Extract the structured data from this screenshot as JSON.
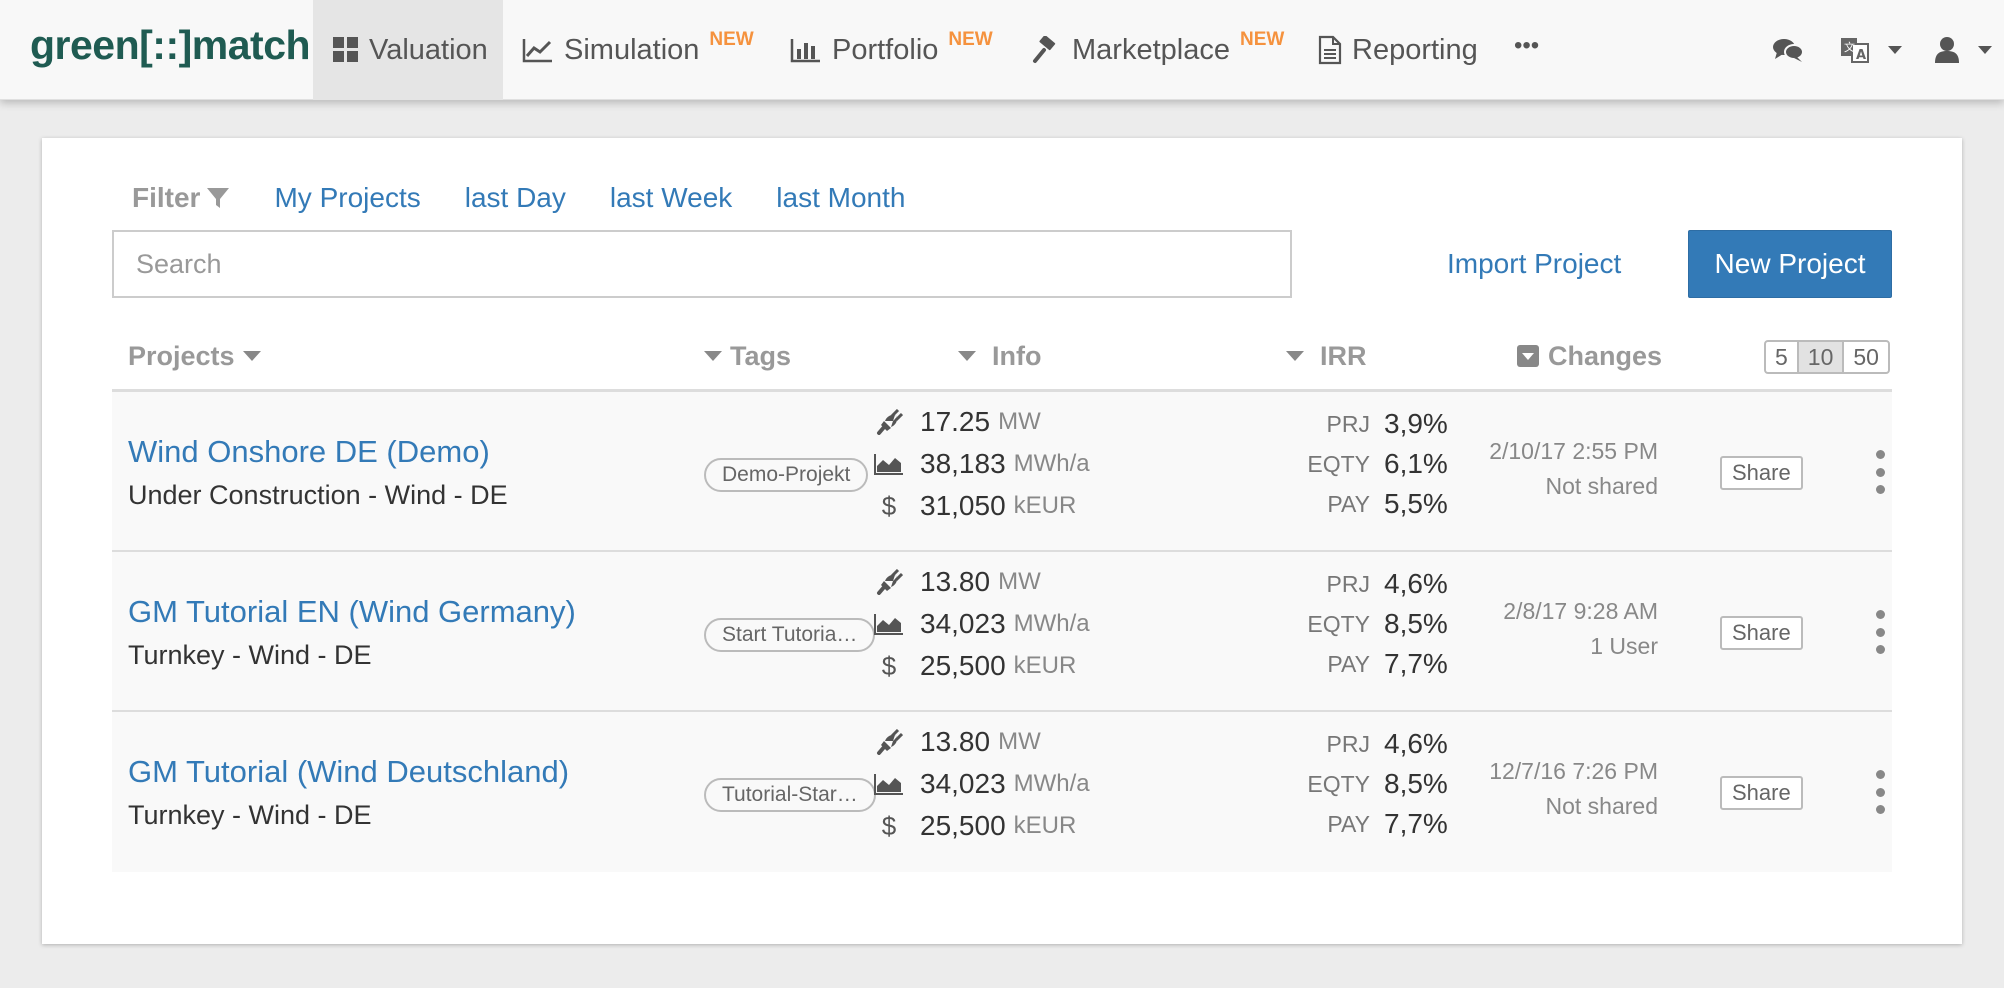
{
  "nav": {
    "logo": {
      "part1": "green",
      "part2": "[::]",
      "part3": "match"
    },
    "items": [
      {
        "label": "Valuation",
        "badge": "",
        "icon": "grid-icon",
        "active": true
      },
      {
        "label": "Simulation",
        "badge": "NEW",
        "icon": "line-chart-icon",
        "active": false
      },
      {
        "label": "Portfolio",
        "badge": "NEW",
        "icon": "bar-chart-icon",
        "active": false
      },
      {
        "label": "Marketplace",
        "badge": "NEW",
        "icon": "gavel-icon",
        "active": false
      },
      {
        "label": "Reporting",
        "badge": "",
        "icon": "document-icon",
        "active": false
      },
      {
        "label": "•••",
        "badge": "",
        "icon": "more-icon",
        "active": false
      }
    ],
    "right_icons": [
      "chat-icon",
      "language-icon",
      "user-icon"
    ]
  },
  "filter": {
    "label": "Filter",
    "links": [
      "My Projects",
      "last Day",
      "last Week",
      "last Month"
    ]
  },
  "search": {
    "placeholder": "Search",
    "value": ""
  },
  "actions": {
    "import": "Import Project",
    "new_project": "New Project"
  },
  "table": {
    "headers": {
      "projects": "Projects",
      "tags": "Tags",
      "info": "Info",
      "irr": "IRR",
      "changes": "Changes"
    },
    "page_sizes": [
      "5",
      "10",
      "50"
    ],
    "selected_page_size": "10",
    "rows": [
      {
        "name": "Wind Onshore DE (Demo)",
        "subtitle": "Under Construction - Wind - DE",
        "tag": "Demo-Projekt",
        "info": [
          {
            "icon": "plug-icon",
            "value": "17.25",
            "unit": "MW"
          },
          {
            "icon": "area-chart-icon",
            "value": "38,183",
            "unit": "MWh/a"
          },
          {
            "icon": "dollar-icon",
            "value": "31,050",
            "unit": "kEUR"
          }
        ],
        "irr": [
          {
            "label": "PRJ",
            "value": "3,9%"
          },
          {
            "label": "EQTY",
            "value": "6,1%"
          },
          {
            "label": "PAY",
            "value": "5,5%"
          }
        ],
        "changed": "2/10/17 2:55 PM",
        "shared": "Not shared",
        "share_label": "Share"
      },
      {
        "name": "GM Tutorial EN (Wind Germany)",
        "subtitle": "Turnkey - Wind - DE",
        "tag": "Start Tutoria…",
        "info": [
          {
            "icon": "plug-icon",
            "value": "13.80",
            "unit": "MW"
          },
          {
            "icon": "area-chart-icon",
            "value": "34,023",
            "unit": "MWh/a"
          },
          {
            "icon": "dollar-icon",
            "value": "25,500",
            "unit": "kEUR"
          }
        ],
        "irr": [
          {
            "label": "PRJ",
            "value": "4,6%"
          },
          {
            "label": "EQTY",
            "value": "8,5%"
          },
          {
            "label": "PAY",
            "value": "7,7%"
          }
        ],
        "changed": "2/8/17 9:28 AM",
        "shared": "1 User",
        "share_label": "Share"
      },
      {
        "name": "GM Tutorial (Wind Deutschland)",
        "subtitle": "Turnkey - Wind - DE",
        "tag": "Tutorial-Star…",
        "info": [
          {
            "icon": "plug-icon",
            "value": "13.80",
            "unit": "MW"
          },
          {
            "icon": "area-chart-icon",
            "value": "34,023",
            "unit": "MWh/a"
          },
          {
            "icon": "dollar-icon",
            "value": "25,500",
            "unit": "kEUR"
          }
        ],
        "irr": [
          {
            "label": "PRJ",
            "value": "4,6%"
          },
          {
            "label": "EQTY",
            "value": "8,5%"
          },
          {
            "label": "PAY",
            "value": "7,7%"
          }
        ],
        "changed": "12/7/16 7:26 PM",
        "shared": "Not shared",
        "share_label": "Share"
      }
    ]
  },
  "colors": {
    "link": "#337ab7",
    "brand": "#1f5b52",
    "badge_new": "#f5923e",
    "primary_button": "#337ab7"
  }
}
